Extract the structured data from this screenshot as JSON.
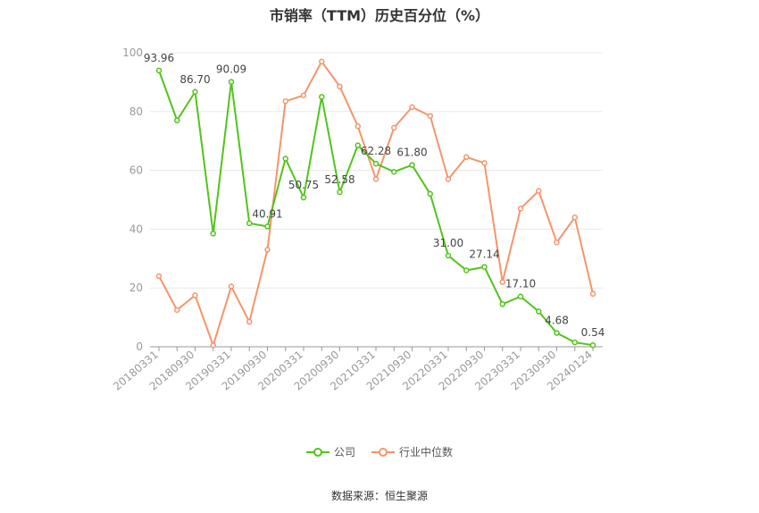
{
  "title": "市销率（TTM）历史百分位（%）",
  "source": "数据来源：恒生聚源",
  "colors": {
    "company": "#52c41a",
    "industry": "#f5956b",
    "grid": "#e8e8e8",
    "axis": "#999999"
  },
  "chart_data": {
    "type": "line",
    "title": "市销率（TTM）历史百分位（%）",
    "ylim": [
      0,
      100
    ],
    "yticks": [
      0,
      20,
      40,
      60,
      80,
      100
    ],
    "grid": true,
    "legend_position": "bottom",
    "x": [
      "20180331",
      "20180630",
      "20180930",
      "20181231",
      "20190331",
      "20190630",
      "20190930",
      "20191231",
      "20200331",
      "20200630",
      "20200930",
      "20201231",
      "20210331",
      "20210630",
      "20210930",
      "20211231",
      "20220331",
      "20220630",
      "20220930",
      "20221231",
      "20230331",
      "20230630",
      "20230930",
      "20231231",
      "20240124"
    ],
    "xtick_labels": [
      "20180331",
      "20180930",
      "20190331",
      "20190930",
      "20200331",
      "20200930",
      "20210331",
      "20210930",
      "20220331",
      "20220930",
      "20230331",
      "20230930",
      "20240124"
    ],
    "series": [
      {
        "name": "公司",
        "values": [
          93.96,
          77,
          86.7,
          38.5,
          90.09,
          42,
          40.91,
          64,
          50.75,
          85,
          52.58,
          68.5,
          62.28,
          59.5,
          61.8,
          52,
          31.0,
          26,
          27.14,
          14.5,
          17.1,
          12,
          4.68,
          1.5,
          0.54
        ],
        "labels": [
          "93.96",
          "",
          "86.70",
          "",
          "90.09",
          "",
          "40.91",
          "",
          "50.75",
          "",
          "52.58",
          "",
          "62.28",
          "",
          "61.80",
          "",
          "31.00",
          "",
          "27.14",
          "",
          "17.10",
          "",
          "4.68",
          "",
          "0.54"
        ]
      },
      {
        "name": "行业中位数",
        "values": [
          24,
          12.5,
          17.5,
          0.5,
          20.5,
          8.5,
          33,
          83.5,
          85.5,
          97,
          88.5,
          75,
          57,
          74.5,
          81.5,
          78.5,
          57,
          64.5,
          62.5,
          22,
          47,
          53,
          35.5,
          44,
          18
        ]
      }
    ]
  }
}
